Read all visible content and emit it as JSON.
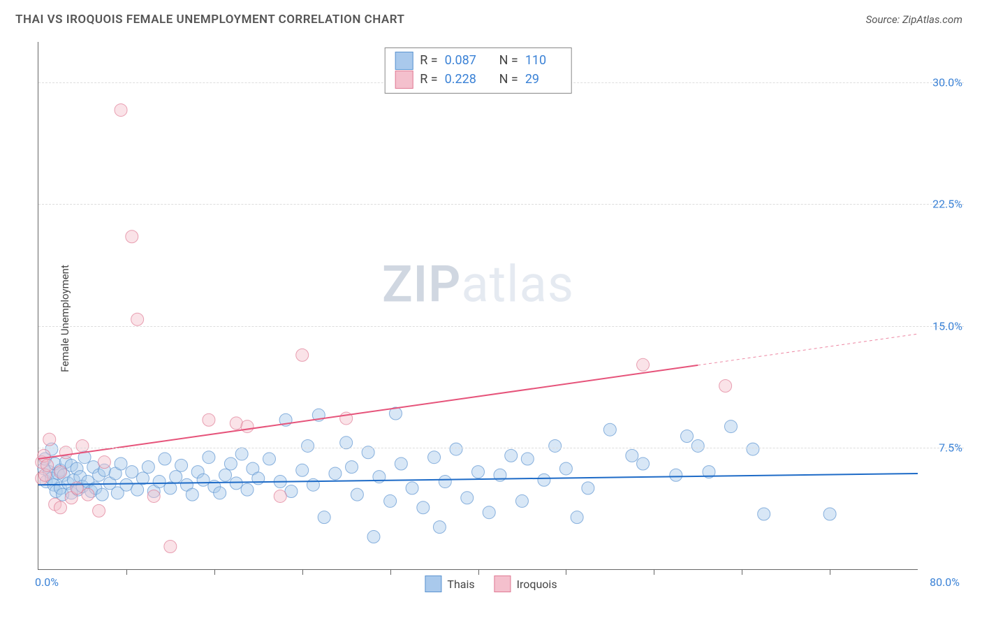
{
  "header": {
    "title": "THAI VS IROQUOIS FEMALE UNEMPLOYMENT CORRELATION CHART",
    "source": "Source: ZipAtlas.com"
  },
  "watermark": {
    "zip": "ZIP",
    "atlas": "atlas"
  },
  "chart": {
    "type": "scatter",
    "ylabel": "Female Unemployment",
    "xlim": [
      0,
      80
    ],
    "ylim": [
      0,
      32.5
    ],
    "yticks": [
      7.5,
      15.0,
      22.5,
      30.0
    ],
    "ytick_labels": [
      "7.5%",
      "15.0%",
      "22.5%",
      "30.0%"
    ],
    "xtick_positions": [
      8,
      16,
      24,
      32,
      40,
      48,
      56,
      64,
      72
    ],
    "xmin_label": "0.0%",
    "xmax_label": "80.0%",
    "background_color": "#ffffff",
    "grid_color": "#dddddd",
    "axis_color": "#666666",
    "marker_radius": 9,
    "marker_opacity": 0.45,
    "line_width": 2,
    "series": [
      {
        "name": "Thais",
        "color_fill": "#a9c9ec",
        "color_stroke": "#5b93d0",
        "line_color": "#1e6bc7",
        "R": "0.087",
        "N": "110",
        "trend": {
          "x1": 0,
          "y1": 5.2,
          "x2": 80,
          "y2": 5.9,
          "dash_from_x": null
        },
        "points": [
          [
            0.5,
            6.2
          ],
          [
            0.6,
            6.8
          ],
          [
            0.7,
            5.4
          ],
          [
            1.0,
            6.0
          ],
          [
            1.2,
            5.6
          ],
          [
            1.2,
            7.4
          ],
          [
            1.4,
            5.2
          ],
          [
            1.5,
            6.5
          ],
          [
            1.6,
            4.8
          ],
          [
            1.8,
            5.9
          ],
          [
            2.0,
            6.1
          ],
          [
            2.0,
            5.0
          ],
          [
            2.2,
            4.6
          ],
          [
            2.3,
            5.8
          ],
          [
            2.5,
            6.6
          ],
          [
            2.7,
            5.3
          ],
          [
            3.0,
            4.7
          ],
          [
            3.0,
            6.4
          ],
          [
            3.2,
            5.5
          ],
          [
            3.5,
            6.2
          ],
          [
            3.6,
            4.9
          ],
          [
            3.8,
            5.7
          ],
          [
            4.0,
            5.1
          ],
          [
            4.2,
            6.9
          ],
          [
            4.5,
            5.4
          ],
          [
            4.8,
            4.8
          ],
          [
            5.0,
            6.3
          ],
          [
            5.2,
            5.0
          ],
          [
            5.5,
            5.8
          ],
          [
            5.8,
            4.6
          ],
          [
            6.0,
            6.1
          ],
          [
            6.5,
            5.3
          ],
          [
            7.0,
            5.9
          ],
          [
            7.2,
            4.7
          ],
          [
            7.5,
            6.5
          ],
          [
            8.0,
            5.2
          ],
          [
            8.5,
            6.0
          ],
          [
            9.0,
            4.9
          ],
          [
            9.5,
            5.6
          ],
          [
            10.0,
            6.3
          ],
          [
            10.5,
            4.8
          ],
          [
            11.0,
            5.4
          ],
          [
            11.5,
            6.8
          ],
          [
            12.0,
            5.0
          ],
          [
            12.5,
            5.7
          ],
          [
            13.0,
            6.4
          ],
          [
            13.5,
            5.2
          ],
          [
            14.0,
            4.6
          ],
          [
            14.5,
            6.0
          ],
          [
            15.0,
            5.5
          ],
          [
            15.5,
            6.9
          ],
          [
            16.0,
            5.1
          ],
          [
            16.5,
            4.7
          ],
          [
            17.0,
            5.8
          ],
          [
            17.5,
            6.5
          ],
          [
            18.0,
            5.3
          ],
          [
            18.5,
            7.1
          ],
          [
            19.0,
            4.9
          ],
          [
            19.5,
            6.2
          ],
          [
            20.0,
            5.6
          ],
          [
            21.0,
            6.8
          ],
          [
            22.0,
            5.4
          ],
          [
            22.5,
            9.2
          ],
          [
            23.0,
            4.8
          ],
          [
            24.0,
            6.1
          ],
          [
            24.5,
            7.6
          ],
          [
            25.0,
            5.2
          ],
          [
            25.5,
            9.5
          ],
          [
            26.0,
            3.2
          ],
          [
            27.0,
            5.9
          ],
          [
            28.0,
            7.8
          ],
          [
            28.5,
            6.3
          ],
          [
            29.0,
            4.6
          ],
          [
            30.0,
            7.2
          ],
          [
            30.5,
            2.0
          ],
          [
            31.0,
            5.7
          ],
          [
            32.0,
            4.2
          ],
          [
            32.5,
            9.6
          ],
          [
            33.0,
            6.5
          ],
          [
            34.0,
            5.0
          ],
          [
            35.0,
            3.8
          ],
          [
            36.0,
            6.9
          ],
          [
            36.5,
            2.6
          ],
          [
            37.0,
            5.4
          ],
          [
            38.0,
            7.4
          ],
          [
            39.0,
            4.4
          ],
          [
            40.0,
            6.0
          ],
          [
            41.0,
            3.5
          ],
          [
            42.0,
            5.8
          ],
          [
            43.0,
            7.0
          ],
          [
            44.0,
            4.2
          ],
          [
            44.5,
            6.8
          ],
          [
            46.0,
            5.5
          ],
          [
            47.0,
            7.6
          ],
          [
            48.0,
            6.2
          ],
          [
            49.0,
            3.2
          ],
          [
            50.0,
            5.0
          ],
          [
            52.0,
            8.6
          ],
          [
            54.0,
            7.0
          ],
          [
            55.0,
            6.5
          ],
          [
            58.0,
            5.8
          ],
          [
            59.0,
            8.2
          ],
          [
            60.0,
            7.6
          ],
          [
            61.0,
            6.0
          ],
          [
            63.0,
            8.8
          ],
          [
            65.0,
            7.4
          ],
          [
            66.0,
            3.4
          ],
          [
            72.0,
            3.4
          ]
        ]
      },
      {
        "name": "Iroquois",
        "color_fill": "#f4c0cd",
        "color_stroke": "#e07a94",
        "line_color": "#e6537a",
        "R": "0.228",
        "N": "29",
        "trend": {
          "x1": 0,
          "y1": 6.8,
          "x2": 80,
          "y2": 14.5,
          "dash_from_x": 60
        },
        "points": [
          [
            0.3,
            6.6
          ],
          [
            0.3,
            5.6
          ],
          [
            0.5,
            7.0
          ],
          [
            0.6,
            5.8
          ],
          [
            0.8,
            6.4
          ],
          [
            1.0,
            8.0
          ],
          [
            1.5,
            4.0
          ],
          [
            2.0,
            6.0
          ],
          [
            2.0,
            3.8
          ],
          [
            2.5,
            7.2
          ],
          [
            3.0,
            4.4
          ],
          [
            3.5,
            5.0
          ],
          [
            4.0,
            7.6
          ],
          [
            4.5,
            4.6
          ],
          [
            5.5,
            3.6
          ],
          [
            6.0,
            6.6
          ],
          [
            7.5,
            28.3
          ],
          [
            8.5,
            20.5
          ],
          [
            9.0,
            15.4
          ],
          [
            10.5,
            4.5
          ],
          [
            12.0,
            1.4
          ],
          [
            15.5,
            9.2
          ],
          [
            18.0,
            9.0
          ],
          [
            19.0,
            8.8
          ],
          [
            22.0,
            4.5
          ],
          [
            24.0,
            13.2
          ],
          [
            28.0,
            9.3
          ],
          [
            55.0,
            12.6
          ],
          [
            62.5,
            11.3
          ]
        ]
      }
    ],
    "stat_legend": {
      "r_label": "R =",
      "n_label": "N ="
    },
    "bottom_legend": {
      "items": [
        "Thais",
        "Iroquois"
      ]
    }
  }
}
